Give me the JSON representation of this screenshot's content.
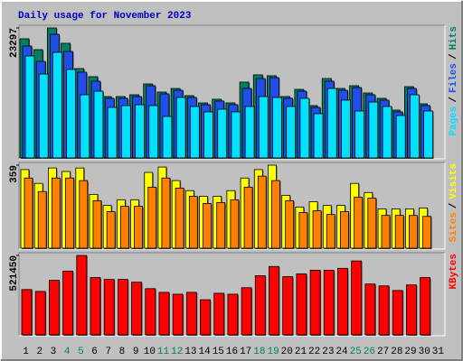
{
  "chart_data": {
    "type": "bar",
    "title": "Daily usage for November 2023",
    "title_color": "#0000c0",
    "categories": [
      "1",
      "2",
      "3",
      "4",
      "5",
      "6",
      "7",
      "8",
      "9",
      "10",
      "11",
      "12",
      "13",
      "14",
      "15",
      "16",
      "17",
      "18",
      "19",
      "20",
      "21",
      "22",
      "23",
      "24",
      "25",
      "26",
      "27",
      "28",
      "29",
      "30",
      "31"
    ],
    "category_colors": [
      "#000000",
      "#000000",
      "#000000",
      "#008060",
      "#008060",
      "#000000",
      "#000000",
      "#000000",
      "#000000",
      "#000000",
      "#008060",
      "#008060",
      "#000000",
      "#000000",
      "#000000",
      "#000000",
      "#000000",
      "#008060",
      "#008060",
      "#000000",
      "#000000",
      "#000000",
      "#000000",
      "#000000",
      "#008060",
      "#008060",
      "#000000",
      "#000000",
      "#000000",
      "#000000",
      "#000000"
    ],
    "legend_separator": "/",
    "panels": [
      {
        "ylim": [
          0,
          23297
        ],
        "yticks": [
          23297
        ],
        "series": [
          {
            "name": "Hits",
            "color": "#008060",
            "values": [
              21370,
              19440,
              23297,
              20570,
              16070,
              14630,
              11090,
              11090,
              11410,
              13340,
              11890,
              12530,
              11250,
              9960,
              10610,
              9960,
              13660,
              14950,
              14790,
              11090,
              12370,
              9480,
              14300,
              12530,
              13020,
              11730,
              10770,
              8680,
              12850,
              9800,
              null
            ]
          },
          {
            "name": "Files",
            "color": "#1f4fe8",
            "values": [
              20090,
              17350,
              22170,
              19120,
              15430,
              13820,
              10770,
              10770,
              11090,
              13020,
              11570,
              12210,
              10930,
              9640,
              10290,
              9640,
              12530,
              14300,
              14460,
              10770,
              12050,
              9160,
              13820,
              12210,
              12690,
              11410,
              10450,
              8360,
              12530,
              9480,
              null
            ]
          },
          {
            "name": "Pages",
            "color": "#00e0ff",
            "values": [
              18320,
              15100,
              18960,
              15910,
              11410,
              12050,
              9160,
              9480,
              9640,
              9480,
              7550,
              10930,
              9320,
              8360,
              8840,
              8360,
              9320,
              11090,
              10930,
              9320,
              10770,
              8040,
              12530,
              10450,
              8520,
              10120,
              9320,
              7710,
              11410,
              8520,
              null
            ]
          }
        ]
      },
      {
        "ylim": [
          0,
          359
        ],
        "yticks": [
          359
        ],
        "series": [
          {
            "name": "Visits",
            "color": "#ffff00",
            "values": [
              340,
              281,
              347,
              332,
              347,
              234,
              187,
              211,
              211,
              328,
              351,
              293,
              250,
              226,
              226,
              250,
              304,
              340,
              359,
              230,
              180,
              203,
              187,
              187,
              281,
              242,
              172,
              172,
              172,
              176,
              null
            ]
          },
          {
            "name": "Sites",
            "color": "#ff8000",
            "values": [
              304,
              246,
              304,
              304,
              293,
              207,
              160,
              183,
              183,
              265,
              304,
              261,
              226,
              195,
              199,
              211,
              265,
              312,
              293,
              207,
              156,
              164,
              148,
              160,
              222,
              218,
              144,
              144,
              144,
              140,
              null
            ]
          }
        ]
      },
      {
        "ylim": [
          0,
          521450
        ],
        "yticks": [
          521450
        ],
        "series": [
          {
            "name": "KBytes",
            "color": "#ff0000",
            "values": [
              300000,
              287700,
              359600,
              419600,
              521450,
              377600,
              365600,
              365600,
              347600,
              305700,
              281700,
              269700,
              281700,
              233800,
              275700,
              269700,
              311700,
              389600,
              449500,
              383600,
              401600,
              425600,
              425600,
              437600,
              485500,
              335700,
              323700,
              293700,
              329700,
              377600,
              null
            ]
          }
        ]
      }
    ]
  }
}
